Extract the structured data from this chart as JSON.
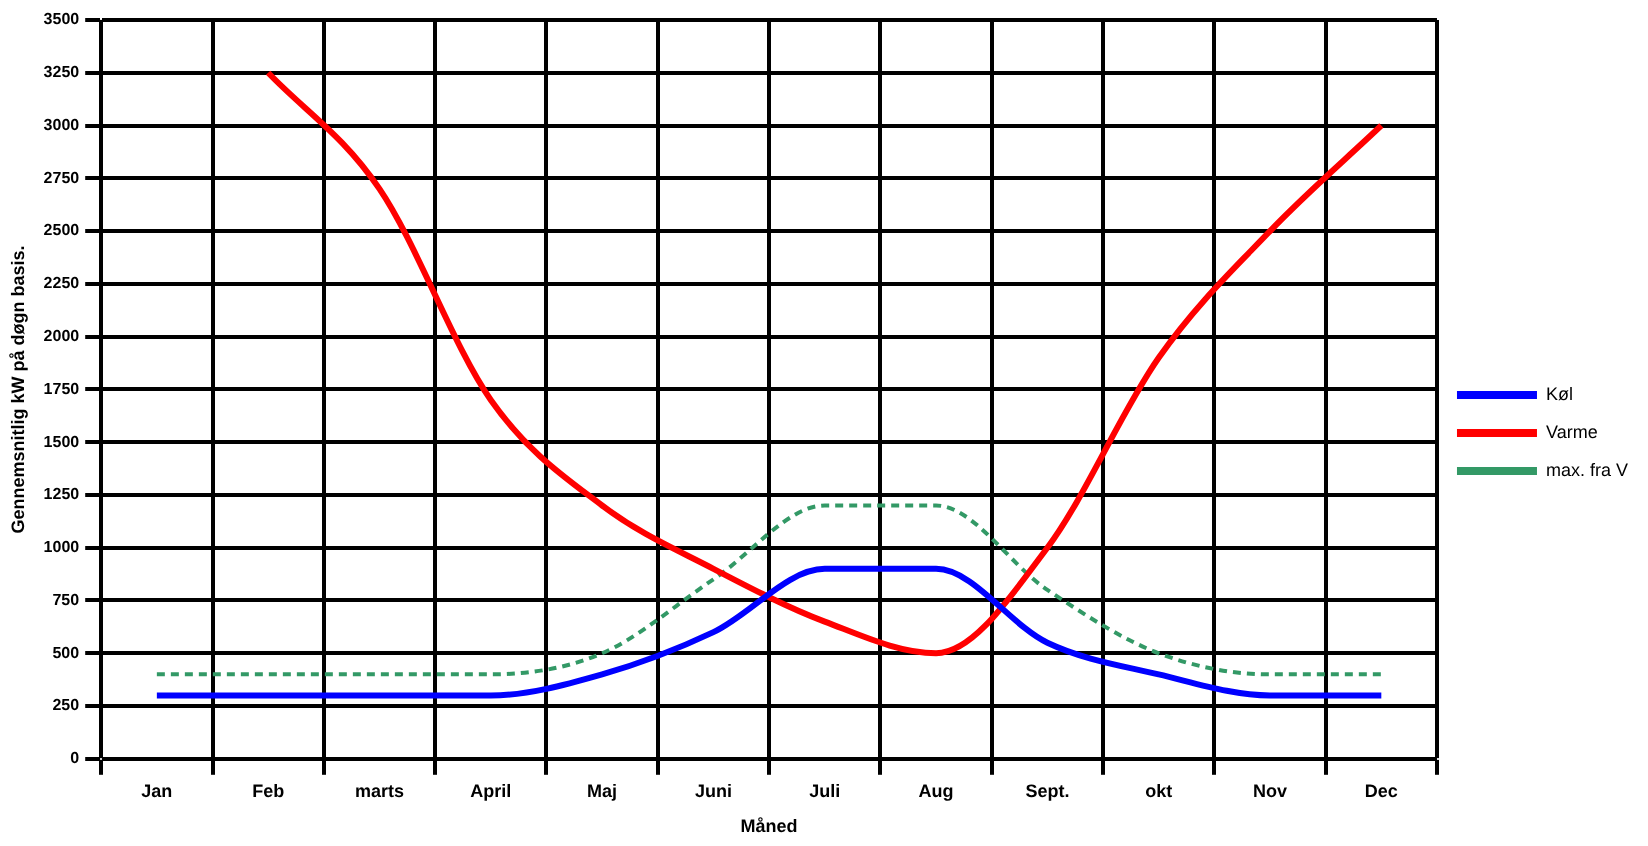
{
  "chart_data": {
    "type": "line",
    "xlabel": "Måned",
    "ylabel": "Gennemsnitlig kW på døgn basis.",
    "categories": [
      "Jan",
      "Feb",
      "marts",
      "April",
      "Maj",
      "Juni",
      "Juli",
      "Aug",
      "Sept.",
      "okt",
      "Nov",
      "Dec"
    ],
    "series": [
      {
        "name": "Køl",
        "color": "#0000ff",
        "values": [
          300,
          300,
          300,
          300,
          400,
          600,
          900,
          900,
          550,
          400,
          300,
          300
        ]
      },
      {
        "name": "Varme",
        "color": "#ff0000",
        "values": [
          null,
          3250,
          2700,
          1700,
          1200,
          900,
          650,
          500,
          1000,
          1900,
          2500,
          3000
        ]
      },
      {
        "name": "max. fra V",
        "color": "#339966",
        "line_style": "dashed",
        "values": [
          400,
          400,
          400,
          400,
          500,
          850,
          1200,
          1200,
          800,
          500,
          400,
          400
        ]
      }
    ],
    "ylim": [
      0,
      3500
    ],
    "yticks": [
      0,
      250,
      500,
      750,
      1000,
      1250,
      1500,
      1750,
      2000,
      2250,
      2500,
      2750,
      3000,
      3250,
      3500
    ],
    "grid": true,
    "legend": "right",
    "marker": "none"
  }
}
